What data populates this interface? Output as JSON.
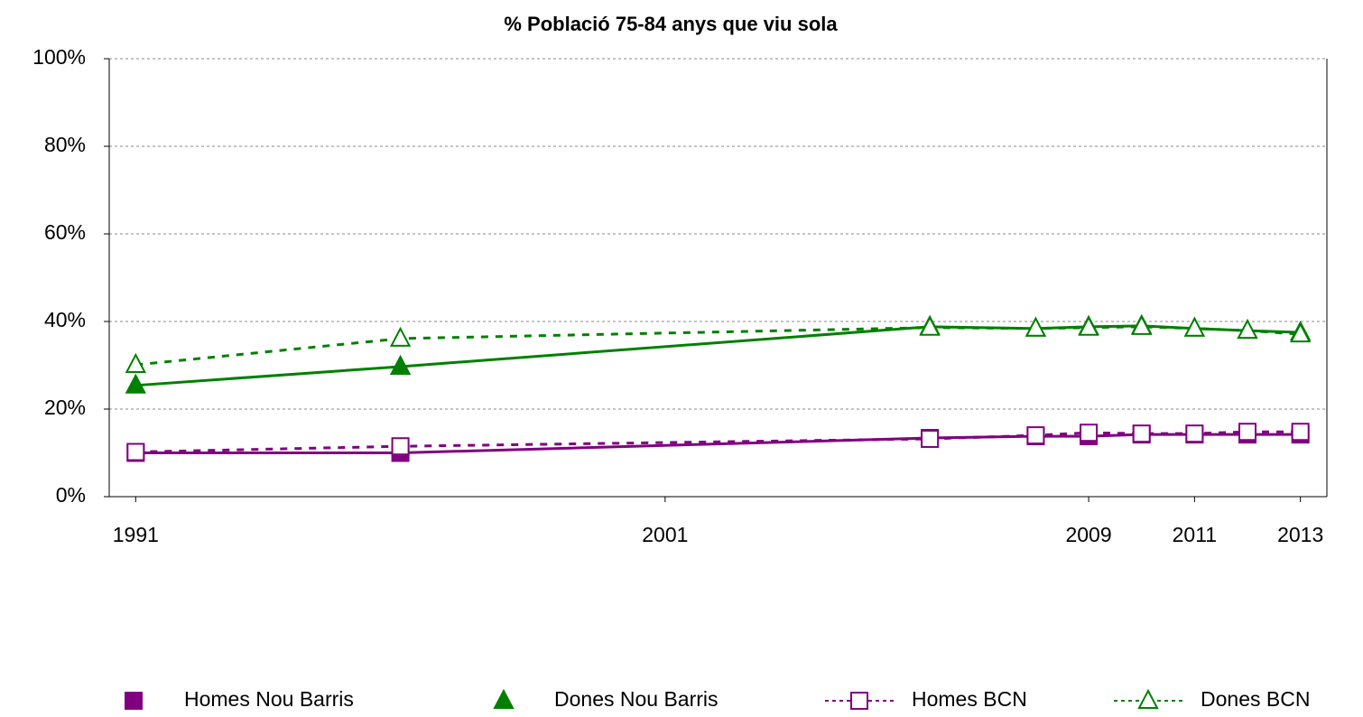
{
  "chart_data": {
    "type": "line",
    "title": "% Població 75-84 anys que viu sola",
    "x": [
      1991,
      1996,
      2006,
      2008,
      2009,
      2010,
      2011,
      2012,
      2013
    ],
    "xlim": [
      1990.5,
      2013.5
    ],
    "xticks": [
      1991,
      2001,
      2009,
      2011,
      2013
    ],
    "ylim": [
      0,
      100
    ],
    "yticks": [
      {
        "value": 0,
        "label": "0%"
      },
      {
        "value": 20,
        "label": "20%"
      },
      {
        "value": 40,
        "label": "40%"
      },
      {
        "value": 60,
        "label": "60%"
      },
      {
        "value": 80,
        "label": "80%"
      },
      {
        "value": 100,
        "label": "100%"
      }
    ],
    "grid": true,
    "legend": "bottom",
    "series": [
      {
        "name": "Homes Nou Barris",
        "color": "#800080",
        "marker": "square",
        "filled": true,
        "dashed": false,
        "values": [
          10,
          10,
          13.4,
          13.8,
          13.8,
          14.2,
          14.2,
          14.2,
          14.2
        ]
      },
      {
        "name": "Dones Nou Barris",
        "color": "#008000",
        "marker": "triangle",
        "filled": true,
        "dashed": false,
        "values": [
          25.4,
          29.7,
          38.8,
          38.4,
          38.8,
          39,
          38.4,
          37.9,
          37.5
        ]
      },
      {
        "name": "Homes BCN",
        "color": "#800080",
        "marker": "square",
        "filled": false,
        "dashed": true,
        "values": [
          10.2,
          11.5,
          13.2,
          14,
          14.6,
          14.4,
          14.4,
          14.8,
          14.8
        ]
      },
      {
        "name": "Dones BCN",
        "color": "#008000",
        "marker": "triangle",
        "filled": false,
        "dashed": true,
        "values": [
          30.1,
          36.1,
          38.6,
          38.4,
          38.6,
          38.8,
          38.4,
          37.9,
          37.1
        ]
      }
    ]
  }
}
